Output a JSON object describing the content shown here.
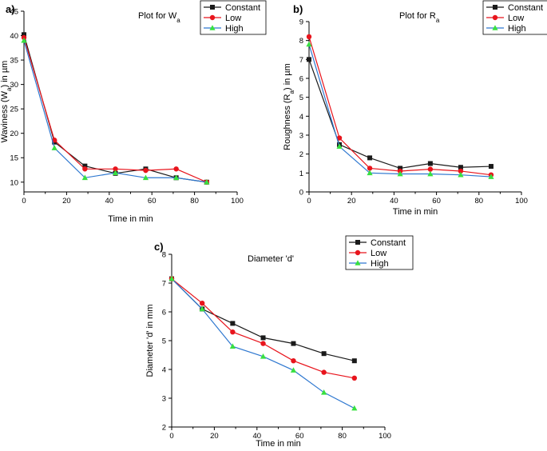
{
  "colors": {
    "constant": "#1a1a1a",
    "low": "#e8141c",
    "high": "#2f78d0",
    "high_marker": "#38e040"
  },
  "legend": [
    "Constant",
    "Low",
    "High"
  ],
  "chart_data": [
    {
      "type": "line",
      "panel": "a)",
      "title": "Plot for W",
      "title_sub": "a",
      "xlabel": "Time in min",
      "ylabel": "Waviness (W",
      "ylabel_sub": "a",
      "ylabel_tail": ") in µm",
      "xlim": [
        0,
        100
      ],
      "ylim": [
        8,
        45
      ],
      "xticks": [
        0,
        20,
        40,
        60,
        80,
        100
      ],
      "yticks": [
        10,
        15,
        20,
        25,
        30,
        35,
        40,
        45
      ],
      "x": [
        0,
        14.3,
        28.6,
        42.9,
        57.1,
        71.4,
        85.7
      ],
      "series": [
        {
          "name": "Constant",
          "values": [
            40.2,
            18.2,
            13.3,
            11.8,
            12.7,
            10.9,
            10.0
          ]
        },
        {
          "name": "Low",
          "values": [
            39.6,
            18.6,
            12.7,
            12.7,
            12.4,
            12.7,
            10.0
          ]
        },
        {
          "name": "High",
          "values": [
            39.0,
            17.0,
            10.9,
            11.9,
            10.9,
            10.9,
            10.0
          ]
        }
      ]
    },
    {
      "type": "line",
      "panel": "b)",
      "title": "Plot for R",
      "title_sub": "a",
      "xlabel": "Time in min",
      "ylabel": "Roughness (R",
      "ylabel_sub": "a",
      "ylabel_tail": ") in µm",
      "xlim": [
        0,
        100
      ],
      "ylim": [
        0,
        9
      ],
      "xticks": [
        0,
        20,
        40,
        60,
        80,
        100
      ],
      "yticks": [
        0,
        1,
        2,
        3,
        4,
        5,
        6,
        7,
        8,
        9
      ],
      "x": [
        0,
        14.3,
        28.6,
        42.9,
        57.1,
        71.4,
        85.7
      ],
      "series": [
        {
          "name": "Constant",
          "values": [
            7.0,
            2.5,
            1.8,
            1.25,
            1.5,
            1.3,
            1.35
          ]
        },
        {
          "name": "Low",
          "values": [
            8.2,
            2.85,
            1.25,
            1.1,
            1.2,
            1.1,
            0.9
          ]
        },
        {
          "name": "High",
          "values": [
            7.8,
            2.4,
            1.0,
            0.95,
            0.95,
            0.9,
            0.8
          ]
        }
      ]
    },
    {
      "type": "line",
      "panel": "c)",
      "title": "Diameter 'd'",
      "title_sub": "",
      "xlabel": "Time in min",
      "ylabel": "Diameter 'd' in mm",
      "ylabel_sub": "",
      "ylabel_tail": "",
      "xlim": [
        0,
        100
      ],
      "ylim": [
        2,
        8
      ],
      "xticks": [
        0,
        20,
        40,
        60,
        80,
        100
      ],
      "yticks": [
        2,
        3,
        4,
        5,
        6,
        7,
        8
      ],
      "x": [
        0,
        14.3,
        28.6,
        42.9,
        57.1,
        71.4,
        85.7
      ],
      "series": [
        {
          "name": "Constant",
          "values": [
            7.15,
            6.1,
            5.6,
            5.1,
            4.9,
            4.55,
            4.3
          ]
        },
        {
          "name": "Low",
          "values": [
            7.15,
            6.3,
            5.3,
            4.9,
            4.3,
            3.9,
            3.7
          ]
        },
        {
          "name": "High",
          "values": [
            7.15,
            6.1,
            4.8,
            4.45,
            3.97,
            3.2,
            2.65
          ]
        }
      ]
    }
  ]
}
